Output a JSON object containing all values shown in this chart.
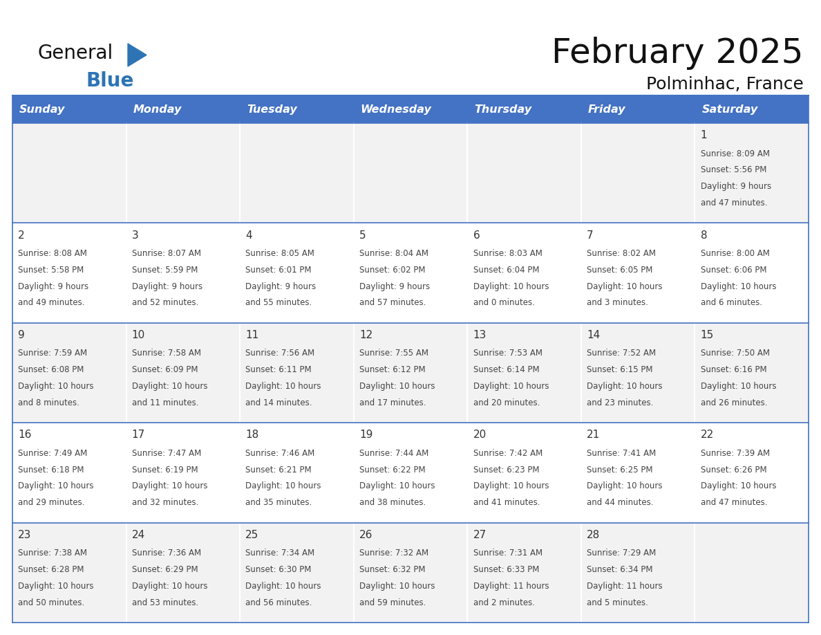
{
  "title": "February 2025",
  "subtitle": "Polminhac, France",
  "header_color": "#4472C4",
  "header_text_color": "#FFFFFF",
  "day_names": [
    "Sunday",
    "Monday",
    "Tuesday",
    "Wednesday",
    "Thursday",
    "Friday",
    "Saturday"
  ],
  "bg_color": "#FFFFFF",
  "row0_color": "#F2F2F2",
  "row1_color": "#FFFFFF",
  "cell_border_color": "#4472C4",
  "day_number_color": "#333333",
  "text_color": "#444444",
  "logo_general_color": "#111111",
  "logo_blue_color": "#2E74B5",
  "calendar_data": [
    [
      null,
      null,
      null,
      null,
      null,
      null,
      {
        "day": "1",
        "sunrise": "8:09 AM",
        "sunset": "5:56 PM",
        "dl1": "Daylight: 9 hours",
        "dl2": "and 47 minutes."
      }
    ],
    [
      {
        "day": "2",
        "sunrise": "8:08 AM",
        "sunset": "5:58 PM",
        "dl1": "Daylight: 9 hours",
        "dl2": "and 49 minutes."
      },
      {
        "day": "3",
        "sunrise": "8:07 AM",
        "sunset": "5:59 PM",
        "dl1": "Daylight: 9 hours",
        "dl2": "and 52 minutes."
      },
      {
        "day": "4",
        "sunrise": "8:05 AM",
        "sunset": "6:01 PM",
        "dl1": "Daylight: 9 hours",
        "dl2": "and 55 minutes."
      },
      {
        "day": "5",
        "sunrise": "8:04 AM",
        "sunset": "6:02 PM",
        "dl1": "Daylight: 9 hours",
        "dl2": "and 57 minutes."
      },
      {
        "day": "6",
        "sunrise": "8:03 AM",
        "sunset": "6:04 PM",
        "dl1": "Daylight: 10 hours",
        "dl2": "and 0 minutes."
      },
      {
        "day": "7",
        "sunrise": "8:02 AM",
        "sunset": "6:05 PM",
        "dl1": "Daylight: 10 hours",
        "dl2": "and 3 minutes."
      },
      {
        "day": "8",
        "sunrise": "8:00 AM",
        "sunset": "6:06 PM",
        "dl1": "Daylight: 10 hours",
        "dl2": "and 6 minutes."
      }
    ],
    [
      {
        "day": "9",
        "sunrise": "7:59 AM",
        "sunset": "6:08 PM",
        "dl1": "Daylight: 10 hours",
        "dl2": "and 8 minutes."
      },
      {
        "day": "10",
        "sunrise": "7:58 AM",
        "sunset": "6:09 PM",
        "dl1": "Daylight: 10 hours",
        "dl2": "and 11 minutes."
      },
      {
        "day": "11",
        "sunrise": "7:56 AM",
        "sunset": "6:11 PM",
        "dl1": "Daylight: 10 hours",
        "dl2": "and 14 minutes."
      },
      {
        "day": "12",
        "sunrise": "7:55 AM",
        "sunset": "6:12 PM",
        "dl1": "Daylight: 10 hours",
        "dl2": "and 17 minutes."
      },
      {
        "day": "13",
        "sunrise": "7:53 AM",
        "sunset": "6:14 PM",
        "dl1": "Daylight: 10 hours",
        "dl2": "and 20 minutes."
      },
      {
        "day": "14",
        "sunrise": "7:52 AM",
        "sunset": "6:15 PM",
        "dl1": "Daylight: 10 hours",
        "dl2": "and 23 minutes."
      },
      {
        "day": "15",
        "sunrise": "7:50 AM",
        "sunset": "6:16 PM",
        "dl1": "Daylight: 10 hours",
        "dl2": "and 26 minutes."
      }
    ],
    [
      {
        "day": "16",
        "sunrise": "7:49 AM",
        "sunset": "6:18 PM",
        "dl1": "Daylight: 10 hours",
        "dl2": "and 29 minutes."
      },
      {
        "day": "17",
        "sunrise": "7:47 AM",
        "sunset": "6:19 PM",
        "dl1": "Daylight: 10 hours",
        "dl2": "and 32 minutes."
      },
      {
        "day": "18",
        "sunrise": "7:46 AM",
        "sunset": "6:21 PM",
        "dl1": "Daylight: 10 hours",
        "dl2": "and 35 minutes."
      },
      {
        "day": "19",
        "sunrise": "7:44 AM",
        "sunset": "6:22 PM",
        "dl1": "Daylight: 10 hours",
        "dl2": "and 38 minutes."
      },
      {
        "day": "20",
        "sunrise": "7:42 AM",
        "sunset": "6:23 PM",
        "dl1": "Daylight: 10 hours",
        "dl2": "and 41 minutes."
      },
      {
        "day": "21",
        "sunrise": "7:41 AM",
        "sunset": "6:25 PM",
        "dl1": "Daylight: 10 hours",
        "dl2": "and 44 minutes."
      },
      {
        "day": "22",
        "sunrise": "7:39 AM",
        "sunset": "6:26 PM",
        "dl1": "Daylight: 10 hours",
        "dl2": "and 47 minutes."
      }
    ],
    [
      {
        "day": "23",
        "sunrise": "7:38 AM",
        "sunset": "6:28 PM",
        "dl1": "Daylight: 10 hours",
        "dl2": "and 50 minutes."
      },
      {
        "day": "24",
        "sunrise": "7:36 AM",
        "sunset": "6:29 PM",
        "dl1": "Daylight: 10 hours",
        "dl2": "and 53 minutes."
      },
      {
        "day": "25",
        "sunrise": "7:34 AM",
        "sunset": "6:30 PM",
        "dl1": "Daylight: 10 hours",
        "dl2": "and 56 minutes."
      },
      {
        "day": "26",
        "sunrise": "7:32 AM",
        "sunset": "6:32 PM",
        "dl1": "Daylight: 10 hours",
        "dl2": "and 59 minutes."
      },
      {
        "day": "27",
        "sunrise": "7:31 AM",
        "sunset": "6:33 PM",
        "dl1": "Daylight: 11 hours",
        "dl2": "and 2 minutes."
      },
      {
        "day": "28",
        "sunrise": "7:29 AM",
        "sunset": "6:34 PM",
        "dl1": "Daylight: 11 hours",
        "dl2": "and 5 minutes."
      },
      null
    ]
  ],
  "figsize": [
    11.88,
    9.18
  ],
  "dpi": 100
}
